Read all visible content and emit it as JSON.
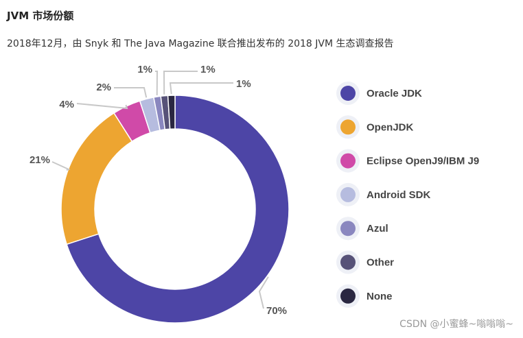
{
  "heading": "JVM 市场份额",
  "subtitle": "2018年12月，由 Snyk 和 The Java Magazine 联合推出发布的 2018 JVM 生态调查报告",
  "watermark": "CSDN @小蜜蜂~嗡嗡嗡~",
  "chart_data": {
    "type": "pie",
    "donut": true,
    "title": "",
    "legend_position": "right",
    "categories": [
      "Oracle JDK",
      "OpenJDK",
      "Eclipse OpenJ9/IBM J9",
      "Android SDK",
      "Azul",
      "Other",
      "None"
    ],
    "values": [
      70,
      21,
      4,
      2,
      1,
      1,
      1
    ],
    "labels": [
      "70%",
      "21%",
      "4%",
      "2%",
      "1%",
      "1%",
      "1%"
    ],
    "colors": [
      "#4d45a6",
      "#eda531",
      "#d04aa8",
      "#b6bcdf",
      "#8a87bf",
      "#575278",
      "#2a2741"
    ]
  }
}
